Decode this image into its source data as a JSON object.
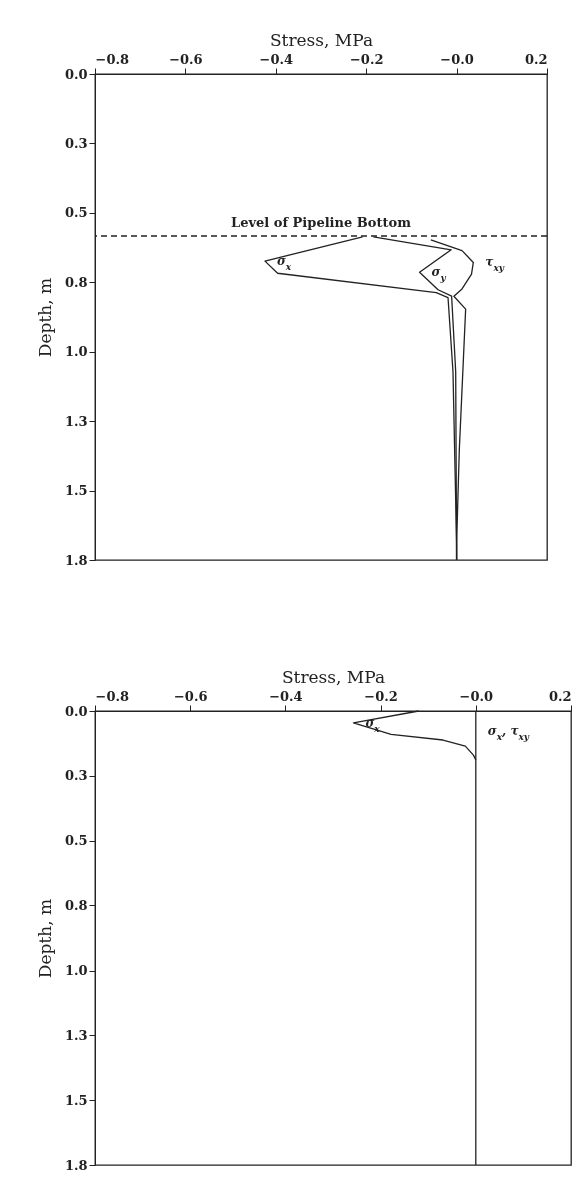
{
  "chart_data": [
    {
      "type": "line",
      "xlabel": "Stress, MPa",
      "ylabel": "Depth, m",
      "xlim": [
        -0.8,
        0.2
      ],
      "ylim": [
        1.8,
        0
      ],
      "xticks": [
        -0.8,
        -0.6,
        -0.4,
        -0.2,
        {
          "value": 0,
          "label": "−0.0"
        },
        0.2
      ],
      "yticks": [
        {
          "value": 0,
          "label": "0.0"
        },
        {
          "value": 0.257,
          "label": "0.3"
        },
        {
          "value": 0.514,
          "label": "0.5"
        },
        {
          "value": 0.771,
          "label": "0.8"
        },
        {
          "value": 1.029,
          "label": "1.0"
        },
        {
          "value": 1.286,
          "label": "1.3"
        },
        {
          "value": 1.543,
          "label": "1.5"
        },
        1.8
      ],
      "series": [
        {
          "name": "σ$_{x}$",
          "color": "#222222",
          "x": [
            -0.208,
            -0.424,
            -0.396,
            -0.045,
            -0.019,
            -0.008,
            0,
            0
          ],
          "values": [
            0.603,
            0.693,
            0.738,
            0.81,
            0.828,
            1.103,
            1.74,
            1.8
          ]
        },
        {
          "name": "σ$_{y}$",
          "color": "#222222",
          "x": [
            -0.184,
            -0.012,
            -0.082,
            -0.041,
            -0.011,
            -0.002,
            0
          ],
          "values": [
            0.603,
            0.651,
            0.734,
            0.799,
            0.823,
            1.103,
            1.8
          ]
        },
        {
          "name": "τ$_{xy}$",
          "color": "#222222",
          "x": [
            -0.057,
            0.012,
            0.037,
            0.033,
            0.012,
            -0.006,
            0.02,
            0.006,
            0,
            0
          ],
          "values": [
            0.614,
            0.654,
            0.698,
            0.741,
            0.796,
            0.823,
            0.871,
            1.392,
            1.74,
            1.8
          ]
        }
      ],
      "ref_lines": [
        {
          "axis": "y",
          "value": 0.6,
          "label": "Level of Pipeline Bottom",
          "line_style": "dashed",
          "color": "#222222"
        }
      ],
      "line_style": "solid",
      "marker": "none",
      "grid": false
    },
    {
      "type": "line",
      "xlabel": "Stress, MPa",
      "ylabel": "Depth, m",
      "xlim": [
        -0.8,
        0.2
      ],
      "ylim": [
        1.8,
        0
      ],
      "xticks": [
        -0.8,
        -0.6,
        -0.4,
        -0.2,
        {
          "value": 0,
          "label": "−0.0"
        },
        0.2
      ],
      "yticks": [
        {
          "value": 0,
          "label": "0.0"
        },
        {
          "value": 0.257,
          "label": "0.3"
        },
        {
          "value": 0.514,
          "label": "0.5"
        },
        {
          "value": 0.771,
          "label": "0.8"
        },
        {
          "value": 1.029,
          "label": "1.0"
        },
        {
          "value": 1.286,
          "label": "1.3"
        },
        {
          "value": 1.543,
          "label": "1.5"
        },
        1.8
      ],
      "series": [
        {
          "name": "σ$_{x}$",
          "color": "#222222",
          "x": [
            -0.12,
            -0.257,
            -0.178,
            -0.069,
            -0.022,
            -0.005,
            0
          ],
          "values": [
            0,
            0.047,
            0.093,
            0.115,
            0.139,
            0.175,
            0.194
          ]
        },
        {
          "name": "σ$_{x}$, τ$_{xy}$",
          "color": "#222222",
          "x": [
            0,
            0,
            0
          ],
          "values": [
            0,
            0.08,
            1.8
          ]
        }
      ],
      "line_style": "solid",
      "marker": "none",
      "grid": false
    }
  ]
}
